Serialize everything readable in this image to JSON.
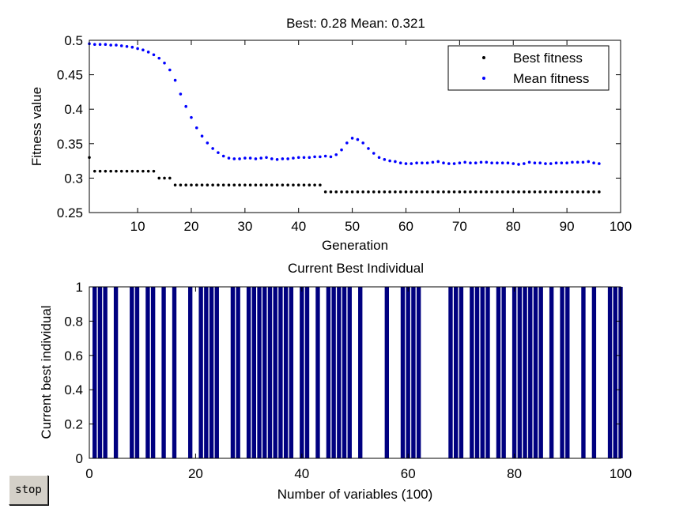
{
  "stop_button": {
    "label": "stop"
  },
  "chart_data": [
    {
      "type": "scatter",
      "title": "Best: 0.28 Mean: 0.321",
      "xlabel": "Generation",
      "ylabel": "Fitness value",
      "xlim": [
        1,
        100
      ],
      "ylim": [
        0.25,
        0.5
      ],
      "xticks": [
        10,
        20,
        30,
        40,
        50,
        60,
        70,
        80,
        90,
        100
      ],
      "yticks": [
        0.25,
        0.3,
        0.35,
        0.4,
        0.45,
        0.5
      ],
      "grid": false,
      "legend_position": "top-right",
      "series": [
        {
          "name": "Best fitness",
          "color": "#000000",
          "x": [
            1,
            2,
            3,
            4,
            5,
            6,
            7,
            8,
            9,
            10,
            11,
            12,
            13,
            14,
            15,
            16,
            17,
            18,
            19,
            20,
            21,
            22,
            23,
            24,
            25,
            26,
            27,
            28,
            29,
            30,
            31,
            32,
            33,
            34,
            35,
            36,
            37,
            38,
            39,
            40,
            41,
            42,
            43,
            44,
            45,
            46,
            47,
            48,
            49,
            50,
            51,
            52,
            53,
            54,
            55,
            56,
            57,
            58,
            59,
            60,
            61,
            62,
            63,
            64,
            65,
            66,
            67,
            68,
            69,
            70,
            71,
            72,
            73,
            74,
            75,
            76,
            77,
            78,
            79,
            80,
            81,
            82,
            83,
            84,
            85,
            86,
            87,
            88,
            89,
            90,
            91,
            92,
            93,
            94,
            95,
            96
          ],
          "y": [
            0.33,
            0.31,
            0.31,
            0.31,
            0.31,
            0.31,
            0.31,
            0.31,
            0.31,
            0.31,
            0.31,
            0.31,
            0.31,
            0.3,
            0.3,
            0.3,
            0.29,
            0.29,
            0.29,
            0.29,
            0.29,
            0.29,
            0.29,
            0.29,
            0.29,
            0.29,
            0.29,
            0.29,
            0.29,
            0.29,
            0.29,
            0.29,
            0.29,
            0.29,
            0.29,
            0.29,
            0.29,
            0.29,
            0.29,
            0.29,
            0.29,
            0.29,
            0.29,
            0.29,
            0.28,
            0.28,
            0.28,
            0.28,
            0.28,
            0.28,
            0.28,
            0.28,
            0.28,
            0.28,
            0.28,
            0.28,
            0.28,
            0.28,
            0.28,
            0.28,
            0.28,
            0.28,
            0.28,
            0.28,
            0.28,
            0.28,
            0.28,
            0.28,
            0.28,
            0.28,
            0.28,
            0.28,
            0.28,
            0.28,
            0.28,
            0.28,
            0.28,
            0.28,
            0.28,
            0.28,
            0.28,
            0.28,
            0.28,
            0.28,
            0.28,
            0.28,
            0.28,
            0.28,
            0.28,
            0.28,
            0.28,
            0.28,
            0.28,
            0.28,
            0.28,
            0.28
          ]
        },
        {
          "name": "Mean fitness",
          "color": "#0000ff",
          "x": [
            1,
            2,
            3,
            4,
            5,
            6,
            7,
            8,
            9,
            10,
            11,
            12,
            13,
            14,
            15,
            16,
            17,
            18,
            19,
            20,
            21,
            22,
            23,
            24,
            25,
            26,
            27,
            28,
            29,
            30,
            31,
            32,
            33,
            34,
            35,
            36,
            37,
            38,
            39,
            40,
            41,
            42,
            43,
            44,
            45,
            46,
            47,
            48,
            49,
            50,
            51,
            52,
            53,
            54,
            55,
            56,
            57,
            58,
            59,
            60,
            61,
            62,
            63,
            64,
            65,
            66,
            67,
            68,
            69,
            70,
            71,
            72,
            73,
            74,
            75,
            76,
            77,
            78,
            79,
            80,
            81,
            82,
            83,
            84,
            85,
            86,
            87,
            88,
            89,
            90,
            91,
            92,
            93,
            94,
            95,
            96
          ],
          "y": [
            0.495,
            0.494,
            0.494,
            0.494,
            0.493,
            0.493,
            0.492,
            0.491,
            0.49,
            0.488,
            0.486,
            0.483,
            0.479,
            0.474,
            0.467,
            0.457,
            0.442,
            0.422,
            0.404,
            0.388,
            0.373,
            0.361,
            0.351,
            0.343,
            0.337,
            0.332,
            0.329,
            0.328,
            0.328,
            0.329,
            0.329,
            0.328,
            0.329,
            0.33,
            0.328,
            0.327,
            0.328,
            0.328,
            0.329,
            0.33,
            0.33,
            0.33,
            0.331,
            0.331,
            0.332,
            0.331,
            0.334,
            0.341,
            0.351,
            0.358,
            0.356,
            0.351,
            0.343,
            0.336,
            0.33,
            0.327,
            0.325,
            0.324,
            0.322,
            0.321,
            0.321,
            0.322,
            0.322,
            0.322,
            0.323,
            0.324,
            0.322,
            0.321,
            0.321,
            0.322,
            0.323,
            0.322,
            0.322,
            0.323,
            0.323,
            0.322,
            0.322,
            0.322,
            0.322,
            0.321,
            0.32,
            0.321,
            0.323,
            0.322,
            0.322,
            0.321,
            0.321,
            0.322,
            0.322,
            0.322,
            0.323,
            0.323,
            0.323,
            0.324,
            0.322,
            0.321
          ]
        }
      ]
    },
    {
      "type": "bar",
      "title": "Current Best Individual",
      "xlabel": "Number of variables (100)",
      "ylabel": "Current best individual",
      "xlim": [
        0,
        100
      ],
      "ylim": [
        0,
        1
      ],
      "xticks": [
        0,
        20,
        40,
        60,
        80,
        100
      ],
      "yticks": [
        0,
        0.2,
        0.4,
        0.6,
        0.8,
        1
      ],
      "grid": false,
      "color": "#000080",
      "x": [
        1,
        2,
        3,
        4,
        5,
        6,
        7,
        8,
        9,
        10,
        11,
        12,
        13,
        14,
        15,
        16,
        17,
        18,
        19,
        20,
        21,
        22,
        23,
        24,
        25,
        26,
        27,
        28,
        29,
        30,
        31,
        32,
        33,
        34,
        35,
        36,
        37,
        38,
        39,
        40,
        41,
        42,
        43,
        44,
        45,
        46,
        47,
        48,
        49,
        50,
        51,
        52,
        53,
        54,
        55,
        56,
        57,
        58,
        59,
        60,
        61,
        62,
        63,
        64,
        65,
        66,
        67,
        68,
        69,
        70,
        71,
        72,
        73,
        74,
        75,
        76,
        77,
        78,
        79,
        80,
        81,
        82,
        83,
        84,
        85,
        86,
        87,
        88,
        89,
        90,
        91,
        92,
        93,
        94,
        95,
        96,
        97,
        98,
        99,
        100
      ],
      "values": [
        1,
        1,
        1,
        0,
        1,
        0,
        0,
        1,
        1,
        0,
        1,
        1,
        0,
        1,
        0,
        1,
        0,
        0,
        1,
        0,
        1,
        1,
        1,
        1,
        0,
        0,
        1,
        1,
        0,
        1,
        1,
        1,
        1,
        1,
        1,
        1,
        1,
        1,
        0,
        1,
        1,
        0,
        1,
        0,
        1,
        1,
        1,
        1,
        1,
        0,
        1,
        0,
        0,
        0,
        0,
        1,
        0,
        0,
        1,
        1,
        1,
        1,
        0,
        0,
        0,
        0,
        0,
        1,
        1,
        1,
        0,
        1,
        1,
        1,
        1,
        0,
        1,
        1,
        0,
        1,
        1,
        1,
        1,
        1,
        1,
        0,
        1,
        0,
        1,
        1,
        0,
        0,
        1,
        0,
        1,
        0,
        0,
        1,
        1,
        1
      ]
    }
  ]
}
